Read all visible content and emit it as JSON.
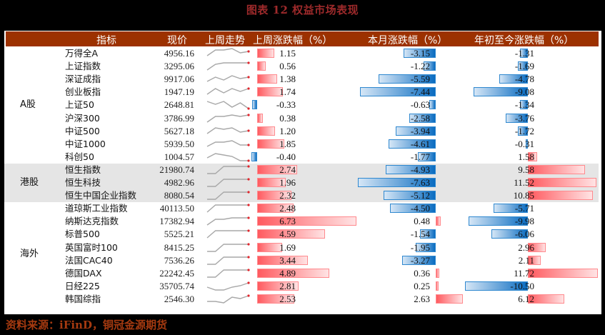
{
  "title": "图表 12  权益市场表现",
  "header": {
    "indicator": "指标",
    "price": "现价",
    "trend": "上周走势",
    "week_chg": "上周涨跌幅（%）",
    "month_chg": "本月涨跌幅（%）",
    "ytd_chg": "年初至今涨跌幅（%）"
  },
  "groups": [
    {
      "label": "A股",
      "rows": [
        0,
        8
      ]
    },
    {
      "label": "港股",
      "rows": [
        9,
        11
      ]
    },
    {
      "label": "海外",
      "rows": [
        12,
        19
      ]
    }
  ],
  "rows": [
    {
      "name": "万得全A",
      "price": "4956.16",
      "week": "1.15",
      "month": "-3.15",
      "ytd": "-1.31",
      "spark": [
        2,
        6,
        6,
        7,
        4,
        5
      ]
    },
    {
      "name": "上证指数",
      "price": "3295.06",
      "week": "0.56",
      "month": "-1.22",
      "ytd": "-1.69",
      "spark": [
        1,
        5,
        6,
        6,
        6,
        6
      ]
    },
    {
      "name": "深证成指",
      "price": "9917.06",
      "week": "1.38",
      "month": "-5.59",
      "ytd": "-4.78",
      "spark": [
        2,
        5,
        3,
        6,
        4,
        5
      ]
    },
    {
      "name": "创业板指",
      "price": "1947.19",
      "week": "1.74",
      "month": "-7.44",
      "ytd": "-9.08",
      "spark": [
        2,
        6,
        3,
        6,
        4,
        6
      ]
    },
    {
      "name": "上证50",
      "price": "2648.81",
      "week": "-0.33",
      "month": "-0.63",
      "ytd": "-1.34",
      "spark": [
        6,
        4,
        6,
        2,
        5,
        1
      ]
    },
    {
      "name": "沪深300",
      "price": "3786.99",
      "week": "0.38",
      "month": "-2.58",
      "ytd": "-3.76",
      "spark": [
        1,
        5,
        5,
        6,
        5,
        6
      ]
    },
    {
      "name": "中证500",
      "price": "5627.18",
      "week": "1.20",
      "month": "-3.94",
      "ytd": "-1.72",
      "spark": [
        2,
        6,
        5,
        6,
        3,
        4
      ]
    },
    {
      "name": "中证1000",
      "price": "5939.50",
      "week": "1.85",
      "month": "-4.61",
      "ytd": "-0.31",
      "spark": [
        2,
        5,
        5,
        6,
        3,
        3
      ]
    },
    {
      "name": "科创50",
      "price": "1004.57",
      "week": "-0.40",
      "month": "-1.77",
      "ytd": "1.58",
      "spark": [
        3,
        6,
        5,
        4,
        1,
        1
      ]
    },
    {
      "name": "恒生指数",
      "price": "21980.74",
      "week": "2.74",
      "month": "-4.93",
      "ytd": "9.58",
      "spark": [
        1,
        1,
        6,
        6,
        6,
        6
      ]
    },
    {
      "name": "恒生科技",
      "price": "4982.96",
      "week": "1.96",
      "month": "-7.63",
      "ytd": "11.52",
      "spark": [
        1,
        1,
        6,
        6,
        6,
        6
      ]
    },
    {
      "name": "恒生中国企业指数",
      "price": "8080.54",
      "week": "2.32",
      "month": "-5.12",
      "ytd": "10.85",
      "spark": [
        1,
        1,
        6,
        6,
        6,
        6
      ]
    },
    {
      "name": "道琼斯工业指数",
      "price": "40113.50",
      "week": "2.48",
      "month": "-4.50",
      "ytd": "-5.71",
      "spark": [
        1,
        6,
        6,
        6,
        6,
        6
      ]
    },
    {
      "name": "纳斯达克指数",
      "price": "17382.94",
      "week": "6.73",
      "month": "0.48",
      "ytd": "-9.98",
      "spark": [
        1,
        5,
        5,
        6,
        6,
        6
      ]
    },
    {
      "name": "标普500",
      "price": "5525.21",
      "week": "4.59",
      "month": "-1.54",
      "ytd": "-6.06",
      "spark": [
        1,
        6,
        6,
        6,
        6,
        6
      ]
    },
    {
      "name": "英国富时100",
      "price": "8415.25",
      "week": "1.69",
      "month": "-1.95",
      "ytd": "2.96",
      "spark": [
        1,
        1,
        6,
        6,
        6,
        6
      ]
    },
    {
      "name": "法国CAC40",
      "price": "7536.26",
      "week": "3.44",
      "month": "-3.27",
      "ytd": "2.11",
      "spark": [
        1,
        1,
        6,
        6,
        6,
        6
      ]
    },
    {
      "name": "德国DAX",
      "price": "22242.45",
      "week": "4.89",
      "month": "0.36",
      "ytd": "11.72",
      "spark": [
        1,
        1,
        6,
        6,
        6,
        6
      ]
    },
    {
      "name": "日经225",
      "price": "35705.74",
      "week": "2.81",
      "month": "0.25",
      "ytd": "-10.50",
      "spark": [
        3,
        1,
        1,
        3,
        4,
        6
      ]
    },
    {
      "name": "韩国综指",
      "price": "2546.30",
      "week": "2.53",
      "month": "2.63",
      "ytd": "6.12",
      "spark": [
        2,
        2,
        1,
        5,
        4,
        6
      ]
    }
  ],
  "colors": {
    "header_bg": "#9c3100",
    "title": "#9e2a2b",
    "footer": "#a63a10",
    "positive_bar": "#ff5a5f",
    "negative_bar": "#0a6cc1",
    "hk_group_bg": "#e5e5e5"
  },
  "footer": "资料来源：iFinD，铜冠金源期货"
}
